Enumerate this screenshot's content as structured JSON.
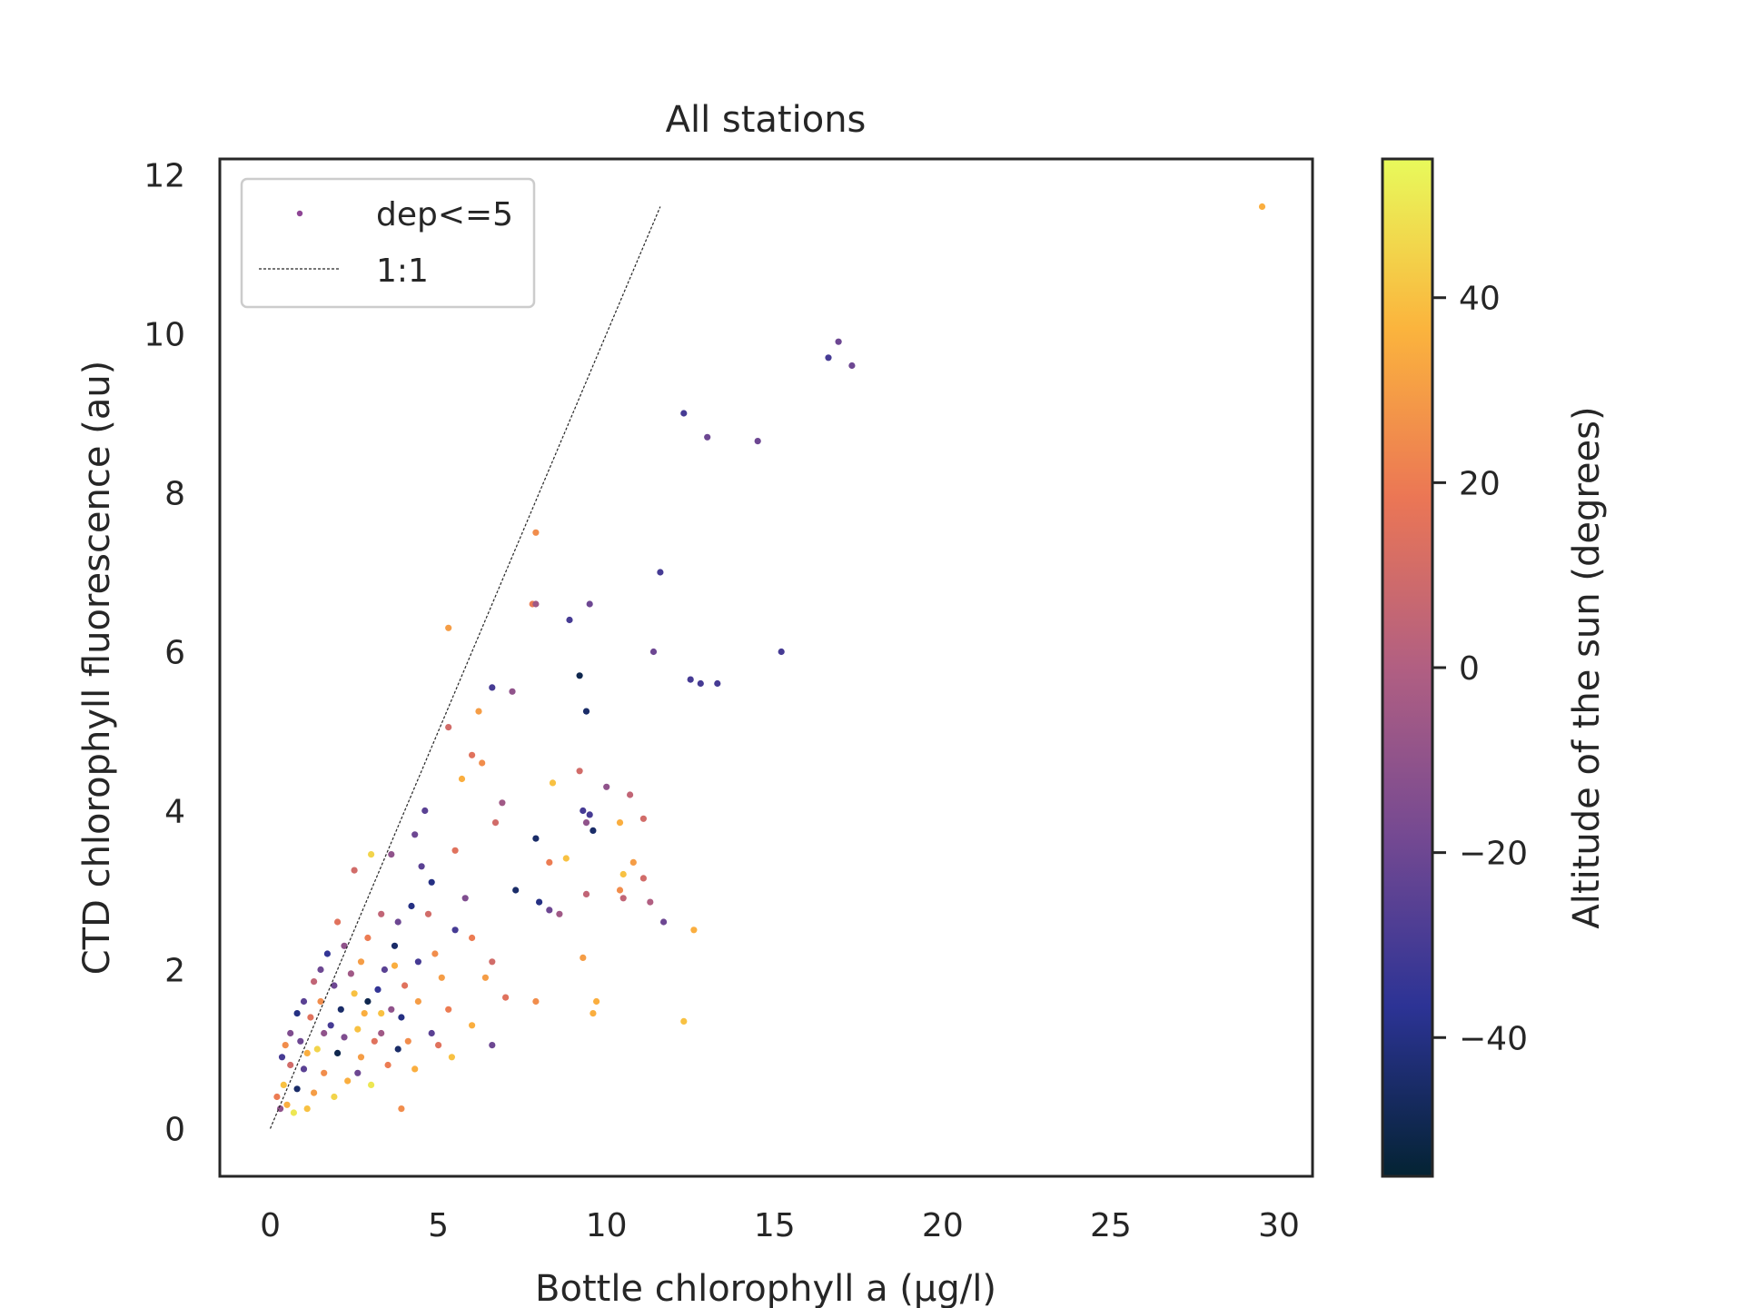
{
  "chart_data": {
    "type": "scatter",
    "title": "All stations",
    "xlabel": "Bottle chlorophyll a (µg/l)",
    "ylabel": "CTD chlorophyll fluorescence (au)",
    "xlim": [
      -1.5,
      31
    ],
    "ylim": [
      -0.6,
      12.2
    ],
    "xticks": [
      0,
      5,
      10,
      15,
      20,
      25,
      30
    ],
    "yticks": [
      0,
      2,
      4,
      6,
      8,
      10,
      12
    ],
    "grid": false,
    "legend": {
      "placement": "top-left",
      "entries": [
        {
          "label": "dep<=5",
          "marker": "point",
          "color": "#8e4595"
        },
        {
          "label": "1:1",
          "marker": "dashed-line",
          "color": "#262626"
        }
      ]
    },
    "reference_line": {
      "name": "1:1",
      "x": [
        0,
        11.6
      ],
      "y": [
        0,
        11.6
      ],
      "style": "dashed",
      "color": "#262626"
    },
    "colorbar": {
      "label": "Altitude of the sun (degrees)",
      "range": [
        -55,
        55
      ],
      "ticks": [
        -40,
        -20,
        0,
        20,
        40
      ],
      "tick_labels": [
        "−40",
        "−20",
        "0",
        "20",
        "40"
      ],
      "colormap": "thermal",
      "stops": [
        "#042333",
        "#2c3395",
        "#744992",
        "#b15f82",
        "#eb7655",
        "#fbb43d",
        "#e8fa5b"
      ]
    },
    "series": [
      {
        "name": "dep<=5",
        "points": [
          {
            "x": 29.5,
            "y": 11.6,
            "c": 35
          },
          {
            "x": 16.9,
            "y": 9.9,
            "c": -20
          },
          {
            "x": 16.6,
            "y": 9.7,
            "c": -30
          },
          {
            "x": 17.3,
            "y": 9.6,
            "c": -20
          },
          {
            "x": 12.3,
            "y": 9.0,
            "c": -30
          },
          {
            "x": 13.0,
            "y": 8.7,
            "c": -20
          },
          {
            "x": 14.5,
            "y": 8.65,
            "c": -20
          },
          {
            "x": 7.9,
            "y": 7.5,
            "c": 25
          },
          {
            "x": 11.6,
            "y": 7.0,
            "c": -30
          },
          {
            "x": 7.8,
            "y": 6.6,
            "c": 20
          },
          {
            "x": 7.9,
            "y": 6.6,
            "c": -5
          },
          {
            "x": 9.5,
            "y": 6.6,
            "c": -20
          },
          {
            "x": 8.9,
            "y": 6.4,
            "c": -30
          },
          {
            "x": 5.3,
            "y": 6.3,
            "c": 30
          },
          {
            "x": 11.4,
            "y": 6.0,
            "c": -20
          },
          {
            "x": 15.2,
            "y": 6.0,
            "c": -30
          },
          {
            "x": 9.2,
            "y": 5.7,
            "c": -50
          },
          {
            "x": 12.5,
            "y": 5.65,
            "c": -30
          },
          {
            "x": 12.8,
            "y": 5.6,
            "c": -30
          },
          {
            "x": 13.3,
            "y": 5.6,
            "c": -30
          },
          {
            "x": 6.6,
            "y": 5.55,
            "c": -30
          },
          {
            "x": 7.2,
            "y": 5.5,
            "c": -10
          },
          {
            "x": 9.4,
            "y": 5.25,
            "c": -45
          },
          {
            "x": 6.2,
            "y": 5.25,
            "c": 30
          },
          {
            "x": 5.3,
            "y": 5.05,
            "c": 10
          },
          {
            "x": 6.0,
            "y": 4.7,
            "c": 15
          },
          {
            "x": 6.3,
            "y": 4.6,
            "c": 25
          },
          {
            "x": 9.2,
            "y": 4.5,
            "c": 10
          },
          {
            "x": 5.7,
            "y": 4.4,
            "c": 35
          },
          {
            "x": 8.4,
            "y": 4.35,
            "c": 40
          },
          {
            "x": 10.0,
            "y": 4.3,
            "c": -10
          },
          {
            "x": 10.7,
            "y": 4.2,
            "c": 5
          },
          {
            "x": 9.3,
            "y": 4.0,
            "c": -30
          },
          {
            "x": 9.5,
            "y": 3.95,
            "c": -30
          },
          {
            "x": 9.4,
            "y": 3.85,
            "c": -10
          },
          {
            "x": 11.1,
            "y": 3.9,
            "c": 10
          },
          {
            "x": 9.6,
            "y": 3.75,
            "c": -45
          },
          {
            "x": 7.9,
            "y": 3.65,
            "c": -45
          },
          {
            "x": 10.4,
            "y": 3.85,
            "c": 35
          },
          {
            "x": 8.3,
            "y": 3.35,
            "c": 20
          },
          {
            "x": 8.8,
            "y": 3.4,
            "c": 40
          },
          {
            "x": 10.8,
            "y": 3.35,
            "c": 30
          },
          {
            "x": 10.5,
            "y": 3.2,
            "c": 40
          },
          {
            "x": 11.1,
            "y": 3.15,
            "c": 10
          },
          {
            "x": 10.4,
            "y": 3.0,
            "c": 25
          },
          {
            "x": 10.5,
            "y": 2.9,
            "c": 5
          },
          {
            "x": 11.3,
            "y": 2.85,
            "c": 0
          },
          {
            "x": 7.3,
            "y": 3.0,
            "c": -45
          },
          {
            "x": 8.0,
            "y": 2.85,
            "c": -40
          },
          {
            "x": 8.3,
            "y": 2.75,
            "c": -20
          },
          {
            "x": 8.6,
            "y": 2.7,
            "c": -5
          },
          {
            "x": 9.4,
            "y": 2.95,
            "c": 5
          },
          {
            "x": 11.7,
            "y": 2.6,
            "c": -20
          },
          {
            "x": 12.6,
            "y": 2.5,
            "c": 35
          },
          {
            "x": 9.3,
            "y": 2.15,
            "c": 30
          },
          {
            "x": 7.9,
            "y": 1.6,
            "c": 25
          },
          {
            "x": 9.7,
            "y": 1.6,
            "c": 35
          },
          {
            "x": 9.6,
            "y": 1.45,
            "c": 35
          },
          {
            "x": 12.3,
            "y": 1.35,
            "c": 40
          },
          {
            "x": 6.6,
            "y": 1.05,
            "c": -20
          },
          {
            "x": 3.9,
            "y": 0.25,
            "c": 25
          },
          {
            "x": 3.0,
            "y": 3.45,
            "c": 45
          },
          {
            "x": 2.5,
            "y": 3.25,
            "c": 10
          },
          {
            "x": 3.6,
            "y": 3.45,
            "c": -10
          },
          {
            "x": 4.5,
            "y": 3.3,
            "c": -25
          },
          {
            "x": 4.8,
            "y": 3.1,
            "c": -40
          },
          {
            "x": 4.3,
            "y": 3.7,
            "c": -20
          },
          {
            "x": 5.5,
            "y": 3.5,
            "c": 15
          },
          {
            "x": 6.7,
            "y": 3.85,
            "c": 10
          },
          {
            "x": 6.9,
            "y": 4.1,
            "c": -5
          },
          {
            "x": 4.6,
            "y": 4.0,
            "c": -25
          },
          {
            "x": 4.2,
            "y": 2.8,
            "c": -40
          },
          {
            "x": 3.3,
            "y": 2.7,
            "c": 5
          },
          {
            "x": 3.8,
            "y": 2.6,
            "c": -20
          },
          {
            "x": 3.7,
            "y": 2.3,
            "c": -45
          },
          {
            "x": 2.9,
            "y": 2.4,
            "c": 20
          },
          {
            "x": 2.2,
            "y": 2.3,
            "c": -10
          },
          {
            "x": 2.7,
            "y": 2.1,
            "c": 30
          },
          {
            "x": 3.4,
            "y": 2.0,
            "c": -25
          },
          {
            "x": 4.9,
            "y": 2.2,
            "c": 25
          },
          {
            "x": 5.5,
            "y": 2.5,
            "c": -30
          },
          {
            "x": 6.0,
            "y": 2.4,
            "c": 20
          },
          {
            "x": 6.6,
            "y": 2.1,
            "c": 10
          },
          {
            "x": 5.1,
            "y": 1.9,
            "c": 30
          },
          {
            "x": 4.0,
            "y": 1.8,
            "c": 15
          },
          {
            "x": 3.2,
            "y": 1.75,
            "c": -35
          },
          {
            "x": 2.5,
            "y": 1.7,
            "c": 40
          },
          {
            "x": 1.9,
            "y": 1.8,
            "c": -20
          },
          {
            "x": 1.5,
            "y": 1.6,
            "c": 25
          },
          {
            "x": 2.1,
            "y": 1.5,
            "c": -45
          },
          {
            "x": 2.8,
            "y": 1.45,
            "c": 35
          },
          {
            "x": 3.6,
            "y": 1.5,
            "c": -10
          },
          {
            "x": 4.4,
            "y": 1.6,
            "c": 30
          },
          {
            "x": 5.3,
            "y": 1.5,
            "c": 20
          },
          {
            "x": 6.0,
            "y": 1.3,
            "c": 35
          },
          {
            "x": 7.0,
            "y": 1.65,
            "c": 15
          },
          {
            "x": 4.8,
            "y": 1.2,
            "c": -25
          },
          {
            "x": 4.1,
            "y": 1.1,
            "c": 25
          },
          {
            "x": 3.3,
            "y": 1.2,
            "c": -5
          },
          {
            "x": 2.6,
            "y": 1.25,
            "c": 40
          },
          {
            "x": 1.8,
            "y": 1.3,
            "c": -30
          },
          {
            "x": 1.2,
            "y": 1.4,
            "c": 15
          },
          {
            "x": 0.9,
            "y": 1.1,
            "c": -20
          },
          {
            "x": 1.4,
            "y": 1.0,
            "c": 45
          },
          {
            "x": 2.0,
            "y": 0.95,
            "c": -50
          },
          {
            "x": 2.7,
            "y": 0.9,
            "c": 30
          },
          {
            "x": 3.5,
            "y": 0.8,
            "c": 20
          },
          {
            "x": 4.3,
            "y": 0.75,
            "c": 35
          },
          {
            "x": 5.4,
            "y": 0.9,
            "c": 40
          },
          {
            "x": 3.0,
            "y": 0.55,
            "c": 50
          },
          {
            "x": 2.3,
            "y": 0.6,
            "c": 35
          },
          {
            "x": 1.6,
            "y": 0.7,
            "c": 25
          },
          {
            "x": 1.0,
            "y": 0.75,
            "c": -25
          },
          {
            "x": 0.6,
            "y": 0.8,
            "c": 10
          },
          {
            "x": 0.4,
            "y": 0.55,
            "c": 40
          },
          {
            "x": 0.8,
            "y": 0.5,
            "c": -45
          },
          {
            "x": 1.3,
            "y": 0.45,
            "c": 30
          },
          {
            "x": 1.9,
            "y": 0.4,
            "c": 45
          },
          {
            "x": 0.5,
            "y": 0.3,
            "c": 35
          },
          {
            "x": 0.3,
            "y": 0.25,
            "c": -10
          },
          {
            "x": 0.7,
            "y": 0.2,
            "c": 50
          },
          {
            "x": 1.1,
            "y": 0.25,
            "c": 40
          },
          {
            "x": 0.2,
            "y": 0.4,
            "c": 20
          },
          {
            "x": 0.35,
            "y": 0.9,
            "c": -30
          },
          {
            "x": 0.6,
            "y": 1.2,
            "c": -15
          },
          {
            "x": 1.0,
            "y": 1.6,
            "c": -25
          },
          {
            "x": 1.5,
            "y": 2.0,
            "c": -20
          },
          {
            "x": 2.0,
            "y": 2.6,
            "c": 15
          },
          {
            "x": 1.7,
            "y": 2.2,
            "c": -35
          },
          {
            "x": 2.4,
            "y": 1.95,
            "c": -5
          },
          {
            "x": 1.3,
            "y": 1.85,
            "c": 5
          },
          {
            "x": 0.8,
            "y": 1.45,
            "c": -40
          },
          {
            "x": 0.45,
            "y": 1.05,
            "c": 25
          },
          {
            "x": 3.9,
            "y": 1.4,
            "c": -40
          },
          {
            "x": 4.7,
            "y": 2.7,
            "c": 10
          },
          {
            "x": 5.8,
            "y": 2.9,
            "c": -15
          },
          {
            "x": 3.1,
            "y": 1.1,
            "c": 15
          },
          {
            "x": 2.2,
            "y": 1.15,
            "c": -15
          },
          {
            "x": 3.7,
            "y": 2.05,
            "c": 35
          },
          {
            "x": 5.0,
            "y": 1.05,
            "c": 15
          },
          {
            "x": 4.4,
            "y": 2.1,
            "c": -30
          },
          {
            "x": 6.4,
            "y": 1.9,
            "c": 30
          },
          {
            "x": 2.9,
            "y": 1.6,
            "c": -50
          },
          {
            "x": 1.1,
            "y": 0.95,
            "c": 35
          },
          {
            "x": 1.6,
            "y": 1.2,
            "c": -10
          },
          {
            "x": 2.6,
            "y": 0.7,
            "c": -20
          },
          {
            "x": 3.3,
            "y": 1.45,
            "c": 40
          },
          {
            "x": 3.8,
            "y": 1.0,
            "c": -45
          }
        ]
      }
    ]
  }
}
